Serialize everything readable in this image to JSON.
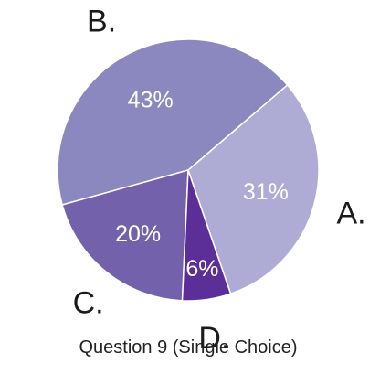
{
  "chart_data": {
    "type": "pie",
    "title": "Question 9 (Single Choice)",
    "categories": [
      "A.",
      "B.",
      "C.",
      "D."
    ],
    "values": [
      31,
      43,
      20,
      6
    ],
    "value_labels": [
      "31%",
      "43%",
      "20%",
      "6%"
    ],
    "colors": [
      "#aeacd4",
      "#8b88c0",
      "#7361ab",
      "#5b2f97"
    ],
    "start_angle_deg": -71,
    "direction": "counterclockwise",
    "legend": "none"
  }
}
